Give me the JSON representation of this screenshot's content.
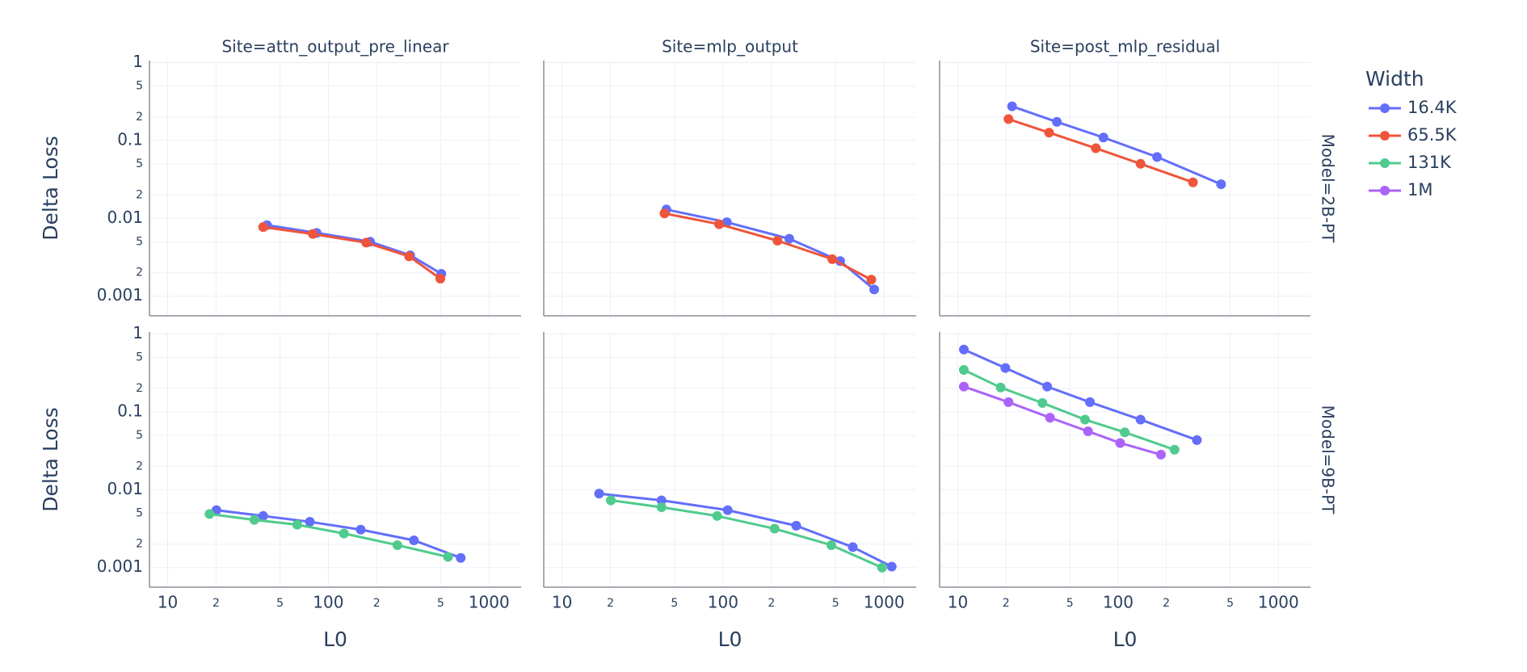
{
  "legend": {
    "title": "Width",
    "items": [
      {
        "name": "16.4K",
        "color": "#636efa"
      },
      {
        "name": "65.5K",
        "color": "#ef553b"
      },
      {
        "name": "131K",
        "color": "#4fcb8d"
      },
      {
        "name": "1M",
        "color": "#ab63fa"
      }
    ]
  },
  "chart_data": [
    {
      "type": "line",
      "title": "Site=attn_output_pre_linear",
      "y_label": "Delta Loss",
      "log_x": true,
      "log_y": true,
      "grid": true,
      "xticklabels": false,
      "yticklabels": true,
      "xlim": [
        7.7,
        1585
      ],
      "ylim": [
        0.00056,
        1.06
      ],
      "xticks": [
        10,
        {
          "value": 20,
          "label": "2"
        },
        {
          "value": 50,
          "label": "5"
        },
        100,
        {
          "value": 200,
          "label": "2"
        },
        {
          "value": 500,
          "label": "5"
        },
        1000
      ],
      "yticks": [
        0.001,
        {
          "value": 0.002,
          "label": "2"
        },
        {
          "value": 0.005,
          "label": "5"
        },
        0.01,
        {
          "value": 0.02,
          "label": "2"
        },
        {
          "value": 0.05,
          "label": "5"
        },
        0.1,
        {
          "value": 0.2,
          "label": "2"
        },
        {
          "value": 0.5,
          "label": "5"
        },
        1
      ],
      "series": [
        {
          "name": "16.4K",
          "color": "#636efa",
          "x": [
            41.5,
            84.6,
            182,
            323,
            505
          ],
          "values": [
            0.00818,
            0.0065,
            0.00501,
            0.00335,
            0.00194
          ]
        },
        {
          "name": "65.5K",
          "color": "#ef553b",
          "x": [
            39.3,
            80,
            172,
            318,
            498
          ],
          "values": [
            0.00772,
            0.0063,
            0.00487,
            0.00325,
            0.00168
          ]
        }
      ]
    },
    {
      "type": "line",
      "title": "Site=mlp_output",
      "log_x": true,
      "log_y": true,
      "grid": true,
      "xticklabels": false,
      "yticklabels": false,
      "xlim": [
        7.7,
        1585
      ],
      "ylim": [
        0.00056,
        1.06
      ],
      "xticks": [
        10,
        {
          "value": 20,
          "label": "2"
        },
        {
          "value": 50,
          "label": "5"
        },
        100,
        {
          "value": 200,
          "label": "2"
        },
        {
          "value": 500,
          "label": "5"
        },
        1000
      ],
      "yticks": [
        0.001,
        {
          "value": 0.002,
          "label": "2"
        },
        {
          "value": 0.005,
          "label": "5"
        },
        0.01,
        {
          "value": 0.02,
          "label": "2"
        },
        {
          "value": 0.05,
          "label": "5"
        },
        0.1,
        {
          "value": 0.2,
          "label": "2"
        },
        {
          "value": 0.5,
          "label": "5"
        },
        1
      ],
      "series": [
        {
          "name": "16.4K",
          "color": "#636efa",
          "x": [
            44.5,
            105.7,
            258,
            534,
            869
          ],
          "values": [
            0.01296,
            0.0089,
            0.00546,
            0.00282,
            0.00122
          ]
        },
        {
          "name": "65.5K",
          "color": "#ef553b",
          "x": [
            43.3,
            94.6,
            218,
            477,
            834
          ],
          "values": [
            0.01155,
            0.0084,
            0.00516,
            0.00299,
            0.00163
          ]
        }
      ]
    },
    {
      "type": "line",
      "title": "Site=post_mlp_residual",
      "row_label": "Model=2B-PT",
      "log_x": true,
      "log_y": true,
      "grid": true,
      "xticklabels": false,
      "yticklabels": false,
      "xlim": [
        7.7,
        1585
      ],
      "ylim": [
        0.00056,
        1.06
      ],
      "xticks": [
        10,
        {
          "value": 20,
          "label": "2"
        },
        {
          "value": 50,
          "label": "5"
        },
        100,
        {
          "value": 200,
          "label": "2"
        },
        {
          "value": 500,
          "label": "5"
        },
        1000
      ],
      "yticks": [
        0.001,
        {
          "value": 0.002,
          "label": "2"
        },
        {
          "value": 0.005,
          "label": "5"
        },
        0.01,
        {
          "value": 0.02,
          "label": "2"
        },
        {
          "value": 0.05,
          "label": "5"
        },
        0.1,
        {
          "value": 0.2,
          "label": "2"
        },
        {
          "value": 0.5,
          "label": "5"
        },
        1
      ],
      "series": [
        {
          "name": "16.4K",
          "color": "#636efa",
          "x": [
            21.8,
            41.5,
            81,
            175,
            439
          ],
          "values": [
            0.274,
            0.173,
            0.109,
            0.0613,
            0.0274
          ]
        },
        {
          "name": "65.5K",
          "color": "#ef553b",
          "x": [
            20.7,
            37.1,
            72.6,
            138,
            293
          ],
          "values": [
            0.188,
            0.126,
            0.0794,
            0.0501,
            0.029
          ]
        }
      ]
    },
    {
      "type": "line",
      "y_label": "Delta Loss",
      "x_label": "L0",
      "log_x": true,
      "log_y": true,
      "grid": true,
      "xticklabels": true,
      "yticklabels": true,
      "xlim": [
        7.7,
        1585
      ],
      "ylim": [
        0.00056,
        1.06
      ],
      "xticks": [
        10,
        {
          "value": 20,
          "label": "2"
        },
        {
          "value": 50,
          "label": "5"
        },
        100,
        {
          "value": 200,
          "label": "2"
        },
        {
          "value": 500,
          "label": "5"
        },
        1000
      ],
      "yticks": [
        0.001,
        {
          "value": 0.002,
          "label": "2"
        },
        {
          "value": 0.005,
          "label": "5"
        },
        0.01,
        {
          "value": 0.02,
          "label": "2"
        },
        {
          "value": 0.05,
          "label": "5"
        },
        0.1,
        {
          "value": 0.2,
          "label": "2"
        },
        {
          "value": 0.5,
          "label": "5"
        },
        1
      ],
      "series": [
        {
          "name": "16.4K",
          "color": "#636efa",
          "x": [
            20.1,
            39.3,
            76.7,
            159,
            341,
            667
          ],
          "values": [
            0.00546,
            0.0046,
            0.00387,
            0.00307,
            0.00224,
            0.00133
          ]
        },
        {
          "name": "131K",
          "color": "#4fcb8d",
          "x": [
            18.2,
            34.6,
            64,
            125,
            269,
            556
          ],
          "values": [
            0.00487,
            0.0041,
            0.00355,
            0.00274,
            0.00194,
            0.00137
          ]
        }
      ]
    },
    {
      "type": "line",
      "x_label": "L0",
      "log_x": true,
      "log_y": true,
      "grid": true,
      "xticklabels": true,
      "yticklabels": false,
      "xlim": [
        7.7,
        1585
      ],
      "ylim": [
        0.00056,
        1.06
      ],
      "xticks": [
        10,
        {
          "value": 20,
          "label": "2"
        },
        {
          "value": 50,
          "label": "5"
        },
        100,
        {
          "value": 200,
          "label": "2"
        },
        {
          "value": 500,
          "label": "5"
        },
        1000
      ],
      "yticks": [
        0.001,
        {
          "value": 0.002,
          "label": "2"
        },
        {
          "value": 0.005,
          "label": "5"
        },
        0.01,
        {
          "value": 0.02,
          "label": "2"
        },
        {
          "value": 0.05,
          "label": "5"
        },
        0.1,
        {
          "value": 0.2,
          "label": "2"
        },
        {
          "value": 0.5,
          "label": "5"
        },
        1
      ],
      "series": [
        {
          "name": "16.4K",
          "color": "#636efa",
          "x": [
            17,
            41.5,
            107,
            285,
            640,
            1117
          ],
          "values": [
            0.0089,
            0.0073,
            0.00546,
            0.00345,
            0.00183,
            0.00103
          ]
        },
        {
          "name": "131K",
          "color": "#4fcb8d",
          "x": [
            20.1,
            41.5,
            92,
            209,
            471,
            973
          ],
          "values": [
            0.0073,
            0.00596,
            0.0046,
            0.00316,
            0.00194,
            0.001
          ]
        }
      ]
    },
    {
      "type": "line",
      "x_label": "L0",
      "row_label": "Model=9B-PT",
      "log_x": true,
      "log_y": true,
      "grid": true,
      "xticklabels": true,
      "yticklabels": false,
      "xlim": [
        7.7,
        1585
      ],
      "ylim": [
        0.00056,
        1.06
      ],
      "xticks": [
        10,
        {
          "value": 20,
          "label": "2"
        },
        {
          "value": 50,
          "label": "5"
        },
        100,
        {
          "value": 200,
          "label": "2"
        },
        {
          "value": 500,
          "label": "5"
        },
        1000
      ],
      "yticks": [
        0.001,
        {
          "value": 0.002,
          "label": "2"
        },
        {
          "value": 0.005,
          "label": "5"
        },
        0.01,
        {
          "value": 0.02,
          "label": "2"
        },
        {
          "value": 0.05,
          "label": "5"
        },
        0.1,
        {
          "value": 0.2,
          "label": "2"
        },
        {
          "value": 0.5,
          "label": "5"
        },
        1
      ],
      "series": [
        {
          "name": "16.4K",
          "color": "#636efa",
          "x": [
            10.9,
            19.8,
            36.1,
            66.7,
            138,
            310
          ],
          "values": [
            0.631,
            0.365,
            0.211,
            0.133,
            0.0794,
            0.0434
          ]
        },
        {
          "name": "131K",
          "color": "#4fcb8d",
          "x": [
            10.9,
            18.5,
            33.7,
            62.2,
            110,
            225
          ],
          "values": [
            0.345,
            0.205,
            0.13,
            0.0794,
            0.0546,
            0.0326
          ]
        },
        {
          "name": "1M",
          "color": "#ab63fa",
          "x": [
            10.9,
            20.7,
            37.6,
            64.9,
            103,
            185
          ],
          "values": [
            0.211,
            0.133,
            0.0841,
            0.0562,
            0.0398,
            0.0282
          ]
        }
      ]
    }
  ]
}
